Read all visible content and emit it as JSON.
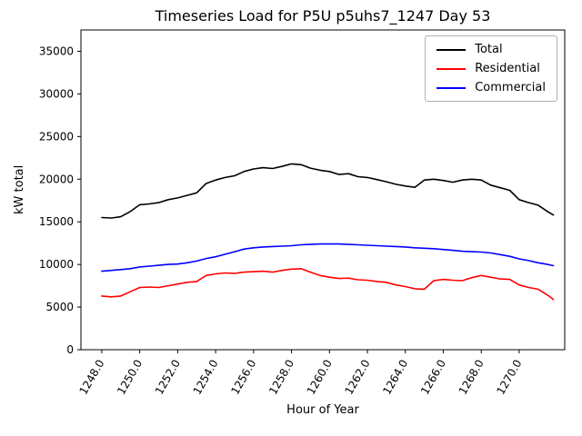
{
  "chart_data": {
    "type": "line",
    "title": "Timeseries Load for P5U p5uhs7_1247  Day 53",
    "xlabel": "Hour of Year",
    "ylabel": "kW total",
    "xlim": [
      1246.9,
      1272.4
    ],
    "ylim": [
      0,
      37500
    ],
    "grid": false,
    "legend_position": "upper right",
    "yticks": [
      0,
      5000,
      10000,
      15000,
      20000,
      25000,
      30000,
      35000
    ],
    "ytick_labels": [
      "0",
      "5000",
      "10000",
      "15000",
      "20000",
      "25000",
      "30000",
      "35000"
    ],
    "xticks": [
      1248,
      1250,
      1252,
      1254,
      1256,
      1258,
      1260,
      1262,
      1264,
      1266,
      1268,
      1270
    ],
    "xtick_labels": [
      "1248.0",
      "1250.0",
      "1252.0",
      "1254.0",
      "1256.0",
      "1258.0",
      "1260.0",
      "1262.0",
      "1264.0",
      "1266.0",
      "1268.0",
      "1270.0"
    ],
    "x": [
      1248.0,
      1248.5,
      1249.0,
      1249.5,
      1250.0,
      1250.5,
      1251.0,
      1251.5,
      1252.0,
      1252.5,
      1253.0,
      1253.5,
      1254.0,
      1254.5,
      1255.0,
      1255.5,
      1256.0,
      1256.5,
      1257.0,
      1257.5,
      1258.0,
      1258.5,
      1259.0,
      1259.5,
      1260.0,
      1260.5,
      1261.0,
      1261.5,
      1262.0,
      1262.5,
      1263.0,
      1263.5,
      1264.0,
      1264.5,
      1265.0,
      1265.5,
      1266.0,
      1266.5,
      1267.0,
      1267.5,
      1268.0,
      1268.5,
      1269.0,
      1269.5,
      1270.0,
      1270.5,
      1271.0,
      1271.5,
      1271.8
    ],
    "series": [
      {
        "name": "Total",
        "color": "#000000",
        "values": [
          15500,
          15450,
          15600,
          16200,
          17000,
          17100,
          17250,
          17600,
          17800,
          18100,
          18400,
          19500,
          19900,
          20200,
          20400,
          20900,
          21200,
          21350,
          21250,
          21500,
          21800,
          21700,
          21300,
          21050,
          20900,
          20550,
          20650,
          20300,
          20200,
          19950,
          19700,
          19400,
          19200,
          19050,
          19900,
          20000,
          19850,
          19650,
          19900,
          20000,
          19900,
          19300,
          19000,
          18700,
          17600,
          17250,
          16950,
          16200,
          15800
        ]
      },
      {
        "name": "Residential",
        "color": "#ff0000",
        "values": [
          6300,
          6200,
          6300,
          6800,
          7300,
          7350,
          7300,
          7500,
          7700,
          7900,
          8000,
          8700,
          8900,
          9000,
          8950,
          9100,
          9150,
          9200,
          9100,
          9300,
          9450,
          9500,
          9100,
          8700,
          8500,
          8350,
          8400,
          8200,
          8150,
          8000,
          7900,
          7600,
          7400,
          7150,
          7100,
          8100,
          8250,
          8150,
          8100,
          8450,
          8700,
          8500,
          8300,
          8250,
          7600,
          7300,
          7100,
          6400,
          5900
        ]
      },
      {
        "name": "Commercial",
        "color": "#0000ff",
        "values": [
          9200,
          9300,
          9400,
          9500,
          9700,
          9800,
          9900,
          10000,
          10050,
          10200,
          10400,
          10700,
          10900,
          11200,
          11500,
          11800,
          11950,
          12050,
          12100,
          12150,
          12200,
          12300,
          12350,
          12400,
          12400,
          12400,
          12350,
          12300,
          12250,
          12200,
          12150,
          12100,
          12050,
          11950,
          11900,
          11850,
          11750,
          11650,
          11550,
          11500,
          11450,
          11350,
          11150,
          10950,
          10650,
          10450,
          10200,
          10000,
          9850
        ]
      }
    ]
  }
}
